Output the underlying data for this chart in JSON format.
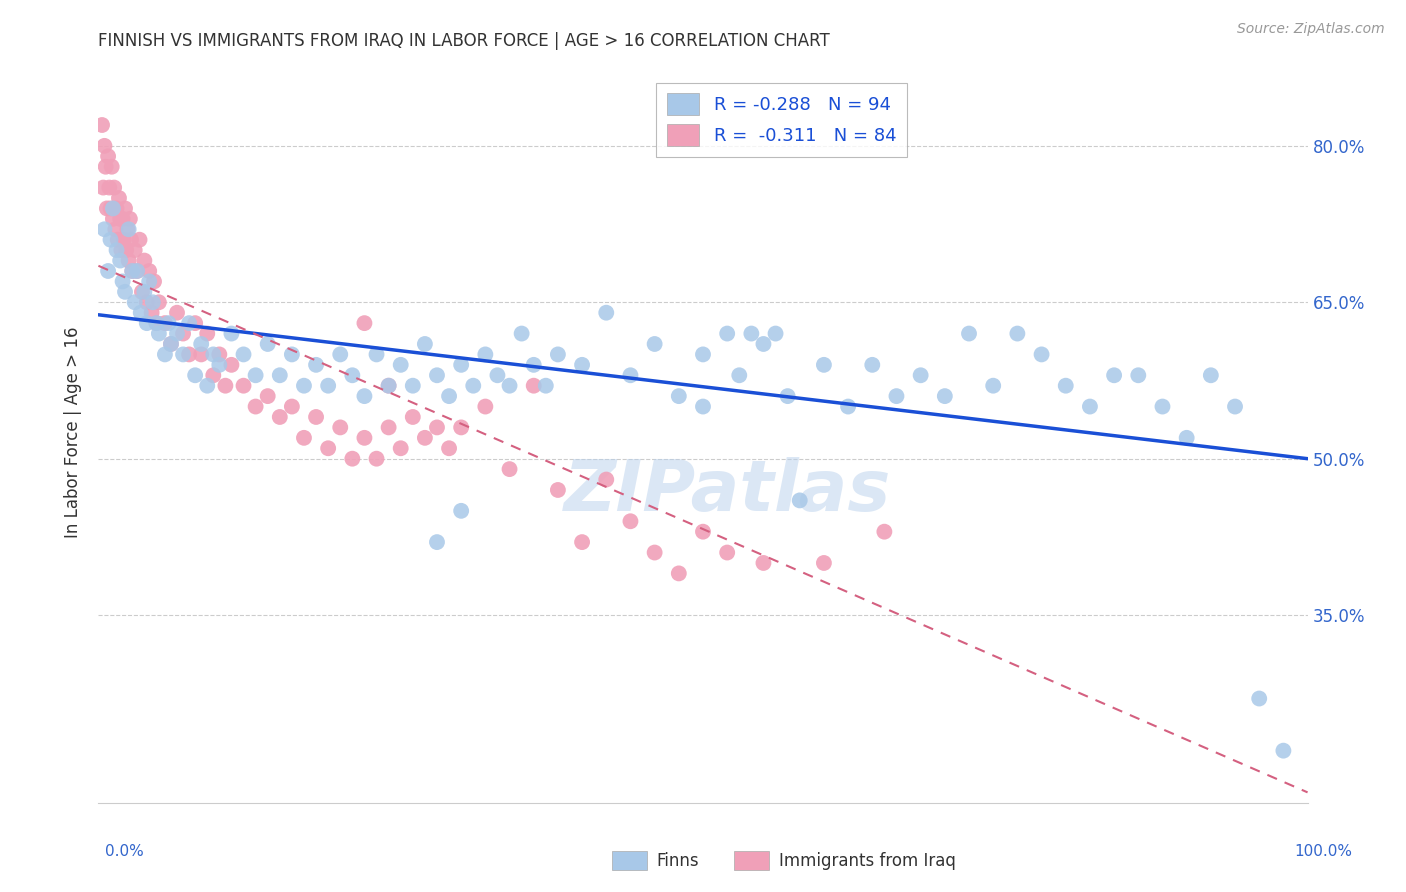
{
  "title": "FINNISH VS IMMIGRANTS FROM IRAQ IN LABOR FORCE | AGE > 16 CORRELATION CHART",
  "source": "Source: ZipAtlas.com",
  "ylabel": "In Labor Force | Age > 16",
  "xlim": [
    0.0,
    1.0
  ],
  "ylim": [
    0.17,
    0.88
  ],
  "ytick_positions": [
    0.35,
    0.5,
    0.65,
    0.8
  ],
  "ytick_labels": [
    "35.0%",
    "50.0%",
    "65.0%",
    "80.0%"
  ],
  "xtick_positions": [
    0.0,
    0.1,
    0.2,
    0.3,
    0.4,
    0.5,
    0.6,
    0.7,
    0.8,
    0.9,
    1.0
  ],
  "finns_color": "#a8c8e8",
  "iraq_color": "#f0a0b8",
  "finns_line_color": "#1a4fd6",
  "iraq_line_color": "#d46080",
  "legend_text_finns": "R = -0.288   N = 94",
  "legend_text_iraq": "R =  -0.311   N = 84",
  "legend_text_color": "#1a4fd6",
  "watermark": "ZIPatlas",
  "watermark_color": "#b8d0ec",
  "background_color": "#ffffff",
  "grid_color": "#cccccc",
  "title_color": "#333333",
  "tick_color": "#3366cc",
  "source_color": "#999999",
  "finns_line_start_y": 0.638,
  "finns_line_end_y": 0.5,
  "iraq_line_start_y": 0.685,
  "iraq_line_end_y": 0.18,
  "finns_scatter_x": [
    0.005,
    0.008,
    0.01,
    0.012,
    0.015,
    0.018,
    0.02,
    0.022,
    0.025,
    0.028,
    0.03,
    0.032,
    0.035,
    0.038,
    0.04,
    0.042,
    0.045,
    0.048,
    0.05,
    0.055,
    0.058,
    0.06,
    0.065,
    0.07,
    0.075,
    0.08,
    0.085,
    0.09,
    0.095,
    0.1,
    0.11,
    0.12,
    0.13,
    0.14,
    0.15,
    0.16,
    0.17,
    0.18,
    0.19,
    0.2,
    0.21,
    0.22,
    0.23,
    0.24,
    0.25,
    0.26,
    0.27,
    0.28,
    0.29,
    0.3,
    0.31,
    0.32,
    0.33,
    0.34,
    0.35,
    0.36,
    0.37,
    0.38,
    0.4,
    0.42,
    0.44,
    0.46,
    0.48,
    0.5,
    0.52,
    0.54,
    0.56,
    0.58,
    0.6,
    0.62,
    0.64,
    0.66,
    0.68,
    0.7,
    0.72,
    0.74,
    0.76,
    0.78,
    0.8,
    0.82,
    0.84,
    0.86,
    0.88,
    0.9,
    0.92,
    0.94,
    0.96,
    0.98,
    0.5,
    0.53,
    0.55,
    0.57,
    0.28,
    0.3
  ],
  "finns_scatter_y": [
    0.72,
    0.68,
    0.71,
    0.74,
    0.7,
    0.69,
    0.67,
    0.66,
    0.72,
    0.68,
    0.65,
    0.68,
    0.64,
    0.66,
    0.63,
    0.67,
    0.65,
    0.63,
    0.62,
    0.6,
    0.63,
    0.61,
    0.62,
    0.6,
    0.63,
    0.58,
    0.61,
    0.57,
    0.6,
    0.59,
    0.62,
    0.6,
    0.58,
    0.61,
    0.58,
    0.6,
    0.57,
    0.59,
    0.57,
    0.6,
    0.58,
    0.56,
    0.6,
    0.57,
    0.59,
    0.57,
    0.61,
    0.58,
    0.56,
    0.59,
    0.57,
    0.6,
    0.58,
    0.57,
    0.62,
    0.59,
    0.57,
    0.6,
    0.59,
    0.64,
    0.58,
    0.61,
    0.56,
    0.6,
    0.62,
    0.62,
    0.62,
    0.46,
    0.59,
    0.55,
    0.59,
    0.56,
    0.58,
    0.56,
    0.62,
    0.57,
    0.62,
    0.6,
    0.57,
    0.55,
    0.58,
    0.58,
    0.55,
    0.52,
    0.58,
    0.55,
    0.27,
    0.22,
    0.55,
    0.58,
    0.61,
    0.56,
    0.42,
    0.45
  ],
  "iraq_scatter_x": [
    0.003,
    0.004,
    0.005,
    0.006,
    0.007,
    0.008,
    0.009,
    0.01,
    0.011,
    0.012,
    0.013,
    0.014,
    0.015,
    0.016,
    0.017,
    0.018,
    0.019,
    0.02,
    0.021,
    0.022,
    0.023,
    0.024,
    0.025,
    0.026,
    0.027,
    0.028,
    0.03,
    0.032,
    0.034,
    0.036,
    0.038,
    0.04,
    0.042,
    0.044,
    0.046,
    0.048,
    0.05,
    0.055,
    0.06,
    0.065,
    0.07,
    0.075,
    0.08,
    0.085,
    0.09,
    0.095,
    0.1,
    0.105,
    0.11,
    0.12,
    0.13,
    0.14,
    0.15,
    0.16,
    0.17,
    0.18,
    0.19,
    0.2,
    0.21,
    0.22,
    0.23,
    0.24,
    0.25,
    0.26,
    0.27,
    0.28,
    0.29,
    0.3,
    0.32,
    0.34,
    0.36,
    0.38,
    0.4,
    0.42,
    0.44,
    0.46,
    0.48,
    0.5,
    0.52,
    0.55,
    0.6,
    0.65,
    0.22,
    0.24
  ],
  "iraq_scatter_y": [
    0.82,
    0.76,
    0.8,
    0.78,
    0.74,
    0.79,
    0.76,
    0.74,
    0.78,
    0.73,
    0.76,
    0.72,
    0.74,
    0.71,
    0.75,
    0.73,
    0.7,
    0.73,
    0.71,
    0.74,
    0.7,
    0.72,
    0.69,
    0.73,
    0.71,
    0.68,
    0.7,
    0.68,
    0.71,
    0.66,
    0.69,
    0.65,
    0.68,
    0.64,
    0.67,
    0.63,
    0.65,
    0.63,
    0.61,
    0.64,
    0.62,
    0.6,
    0.63,
    0.6,
    0.62,
    0.58,
    0.6,
    0.57,
    0.59,
    0.57,
    0.55,
    0.56,
    0.54,
    0.55,
    0.52,
    0.54,
    0.51,
    0.53,
    0.5,
    0.52,
    0.5,
    0.53,
    0.51,
    0.54,
    0.52,
    0.53,
    0.51,
    0.53,
    0.55,
    0.49,
    0.57,
    0.47,
    0.42,
    0.48,
    0.44,
    0.41,
    0.39,
    0.43,
    0.41,
    0.4,
    0.4,
    0.43,
    0.63,
    0.57
  ]
}
